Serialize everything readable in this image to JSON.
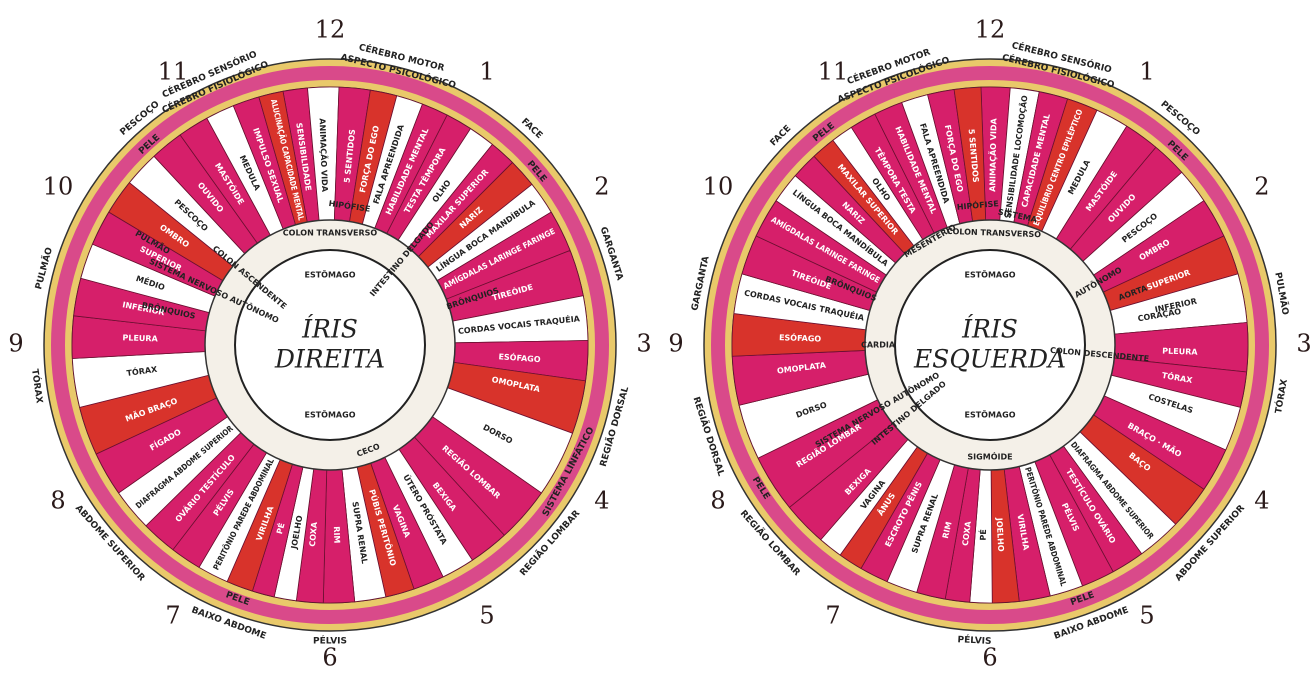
{
  "irises": [
    {
      "title_line1": "ÍRIS",
      "title_line2": "DIREITA",
      "hours": [
        "12",
        "1",
        "2",
        "3",
        "4",
        "5",
        "6",
        "7",
        "8",
        "9",
        "10",
        "11"
      ],
      "outer_labels": [
        "CÉREBRO MOTOR",
        "ASPECTO PSICOLÓGICO",
        "FACE",
        "PELE",
        "GARGANTA",
        "REGIÃO DORSAL",
        "SISTEMA LINFÁTICO",
        "REGIÃO LOMBAR",
        "PÉLVIS",
        "BAIXO ABDOME",
        "PELE",
        "ABDOME SUPERIOR",
        "TÓRAX",
        "PULMÃO",
        "PELE",
        "PESCOÇO",
        "CÉREBRO SENSÓRIO",
        "CÉREBRO FISIOLÓGICO"
      ],
      "sectors": [
        "SENSIBILIDADE",
        "ANIMAÇÃO VIDA",
        "5 SENTIDOS",
        "FORÇA DO EGO",
        "FALA APREENDIDA",
        "HABILIDADE MENTAL",
        "TESTA TÊMPORA",
        "OLHO",
        "MAXILAR SUPERIOR",
        "NARIZ",
        "LÍNGUA BOCA MANDÍBULA",
        "AMÍGDALAS LARINGE FARINGE",
        "TIREÓIDE",
        "CORDAS VOCAIS TRAQUÉIA",
        "ESÓFAGO",
        "OMOPLATA",
        "DORSO",
        "REGIÃO LOMBAR",
        "BEXIGA",
        "ÚTERO PRÓSTATA",
        "VAGINA",
        "PÚBIS PERITÔNIO",
        "SUPRA RENAL",
        "RIM",
        "COXA",
        "JOELHO",
        "PÉ",
        "VIRILHA",
        "PERITÔNIO PAREDE ABDOMINAL",
        "PÉLVIS",
        "OVÁRIO TESTÍCULO",
        "DIAFRAGMA ABDOME SUPERIOR",
        "FÍGADO",
        "MÃO BRAÇO",
        "TÓRAX",
        "PLEURA",
        "INFERIOR",
        "MÉDIO",
        "SUPERIOR",
        "OMBRO",
        "PESCOÇO",
        "OUVIDO",
        "MASTÓIDE",
        "MEDULA",
        "IMPULSO SEXUAL",
        "ALUCINAÇÃO CAPACIDADE MENTAL"
      ],
      "inner_labels": [
        "HIPÓFISE",
        "COLON TRANSVERSO",
        "INTESTINO DELGADO",
        "BRÔNQUIOS",
        "ESTÔMAGO",
        "ESTÔMAGO",
        "CECO",
        "COLON ASCENDENTE",
        "SISTEMA NERVOSO AUTÔNOMO",
        "BRÔNQUIOS",
        "PULMÃO"
      ]
    },
    {
      "title_line1": "ÍRIS",
      "title_line2": "ESQUERDA",
      "hours": [
        "12",
        "1",
        "2",
        "3",
        "4",
        "5",
        "6",
        "7",
        "8",
        "9",
        "10",
        "11"
      ],
      "outer_labels": [
        "CÉREBRO SENSÓRIO",
        "CÉREBRO FISIOLÓGICO",
        "PESCOÇO",
        "PELE",
        "PULMÃO",
        "TÓRAX",
        "ABDOME SUPERIOR",
        "BAIXO ABDOME",
        "PELE",
        "PÉLVIS",
        "REGIÃO LOMBAR",
        "PELE",
        "REGIÃO DORSAL",
        "GARGANTA",
        "FACE",
        "PELE",
        "CÉREBRO MOTOR",
        "ASPECTO PSICOLÓGICO"
      ],
      "sectors": [
        "ANIMAÇÃO VIDA",
        "SENSIBILIDADE LOCOMOÇÃO",
        "CAPACIDADE MENTAL",
        "EQUILÍBRIO CENTRO EPILÉPTICO",
        "MEDULA",
        "MASTÓIDE",
        "OUVIDO",
        "PESCOÇO",
        "OMBRO",
        "SUPERIOR",
        "INFERIOR",
        "PLEURA",
        "TÓRAX",
        "COSTELAS",
        "BRAÇO · MÃO",
        "BAÇO",
        "DIAFRAGMA ABDOME SUPERIOR",
        "TESTÍCULO OVÁRIO",
        "PÉLVIS",
        "PERITÔNIO PAREDE ABDOMINAL",
        "VIRILHA",
        "JOELHO",
        "PÉ",
        "COXA",
        "RIM",
        "SUPRA RENAL",
        "ESCROTO PÊNIS",
        "ÂNUS",
        "VAGINA",
        "BEXIGA",
        "REGIÃO LOMBAR",
        "DORSO",
        "OMOPLATA",
        "ESÓFAGO",
        "CORDAS VOCAIS TRAQUÉIA",
        "TIREÓIDE",
        "AMÍGDALAS LARINGE FARINGE",
        "LÍNGUA BOCA MANDÍBULA",
        "NARIZ",
        "MAXILAR SUPERIOR",
        "OLHO",
        "TÊMPORA TESTA",
        "HABILIDADE MENTAL",
        "FALA APREENDIDA",
        "FORÇA DO EGO",
        "5 SENTIDOS"
      ],
      "inner_labels": [
        "HIPÓFISE",
        "SISTEMA",
        "COLON TRANSVERSO",
        "MESENTÉRIO",
        "ESTÔMAGO",
        "ESTÔMAGO",
        "CARDIA",
        "BRÔNQUIOS",
        "SISTEMA NERVOSO AUTÔNOMO",
        "INTESTINO DELGADO",
        "SIGMÓIDE",
        "COLON DESCENDENTE",
        "AUTÔNOMO",
        "AORTA",
        "CORAÇÃO"
      ]
    }
  ]
}
